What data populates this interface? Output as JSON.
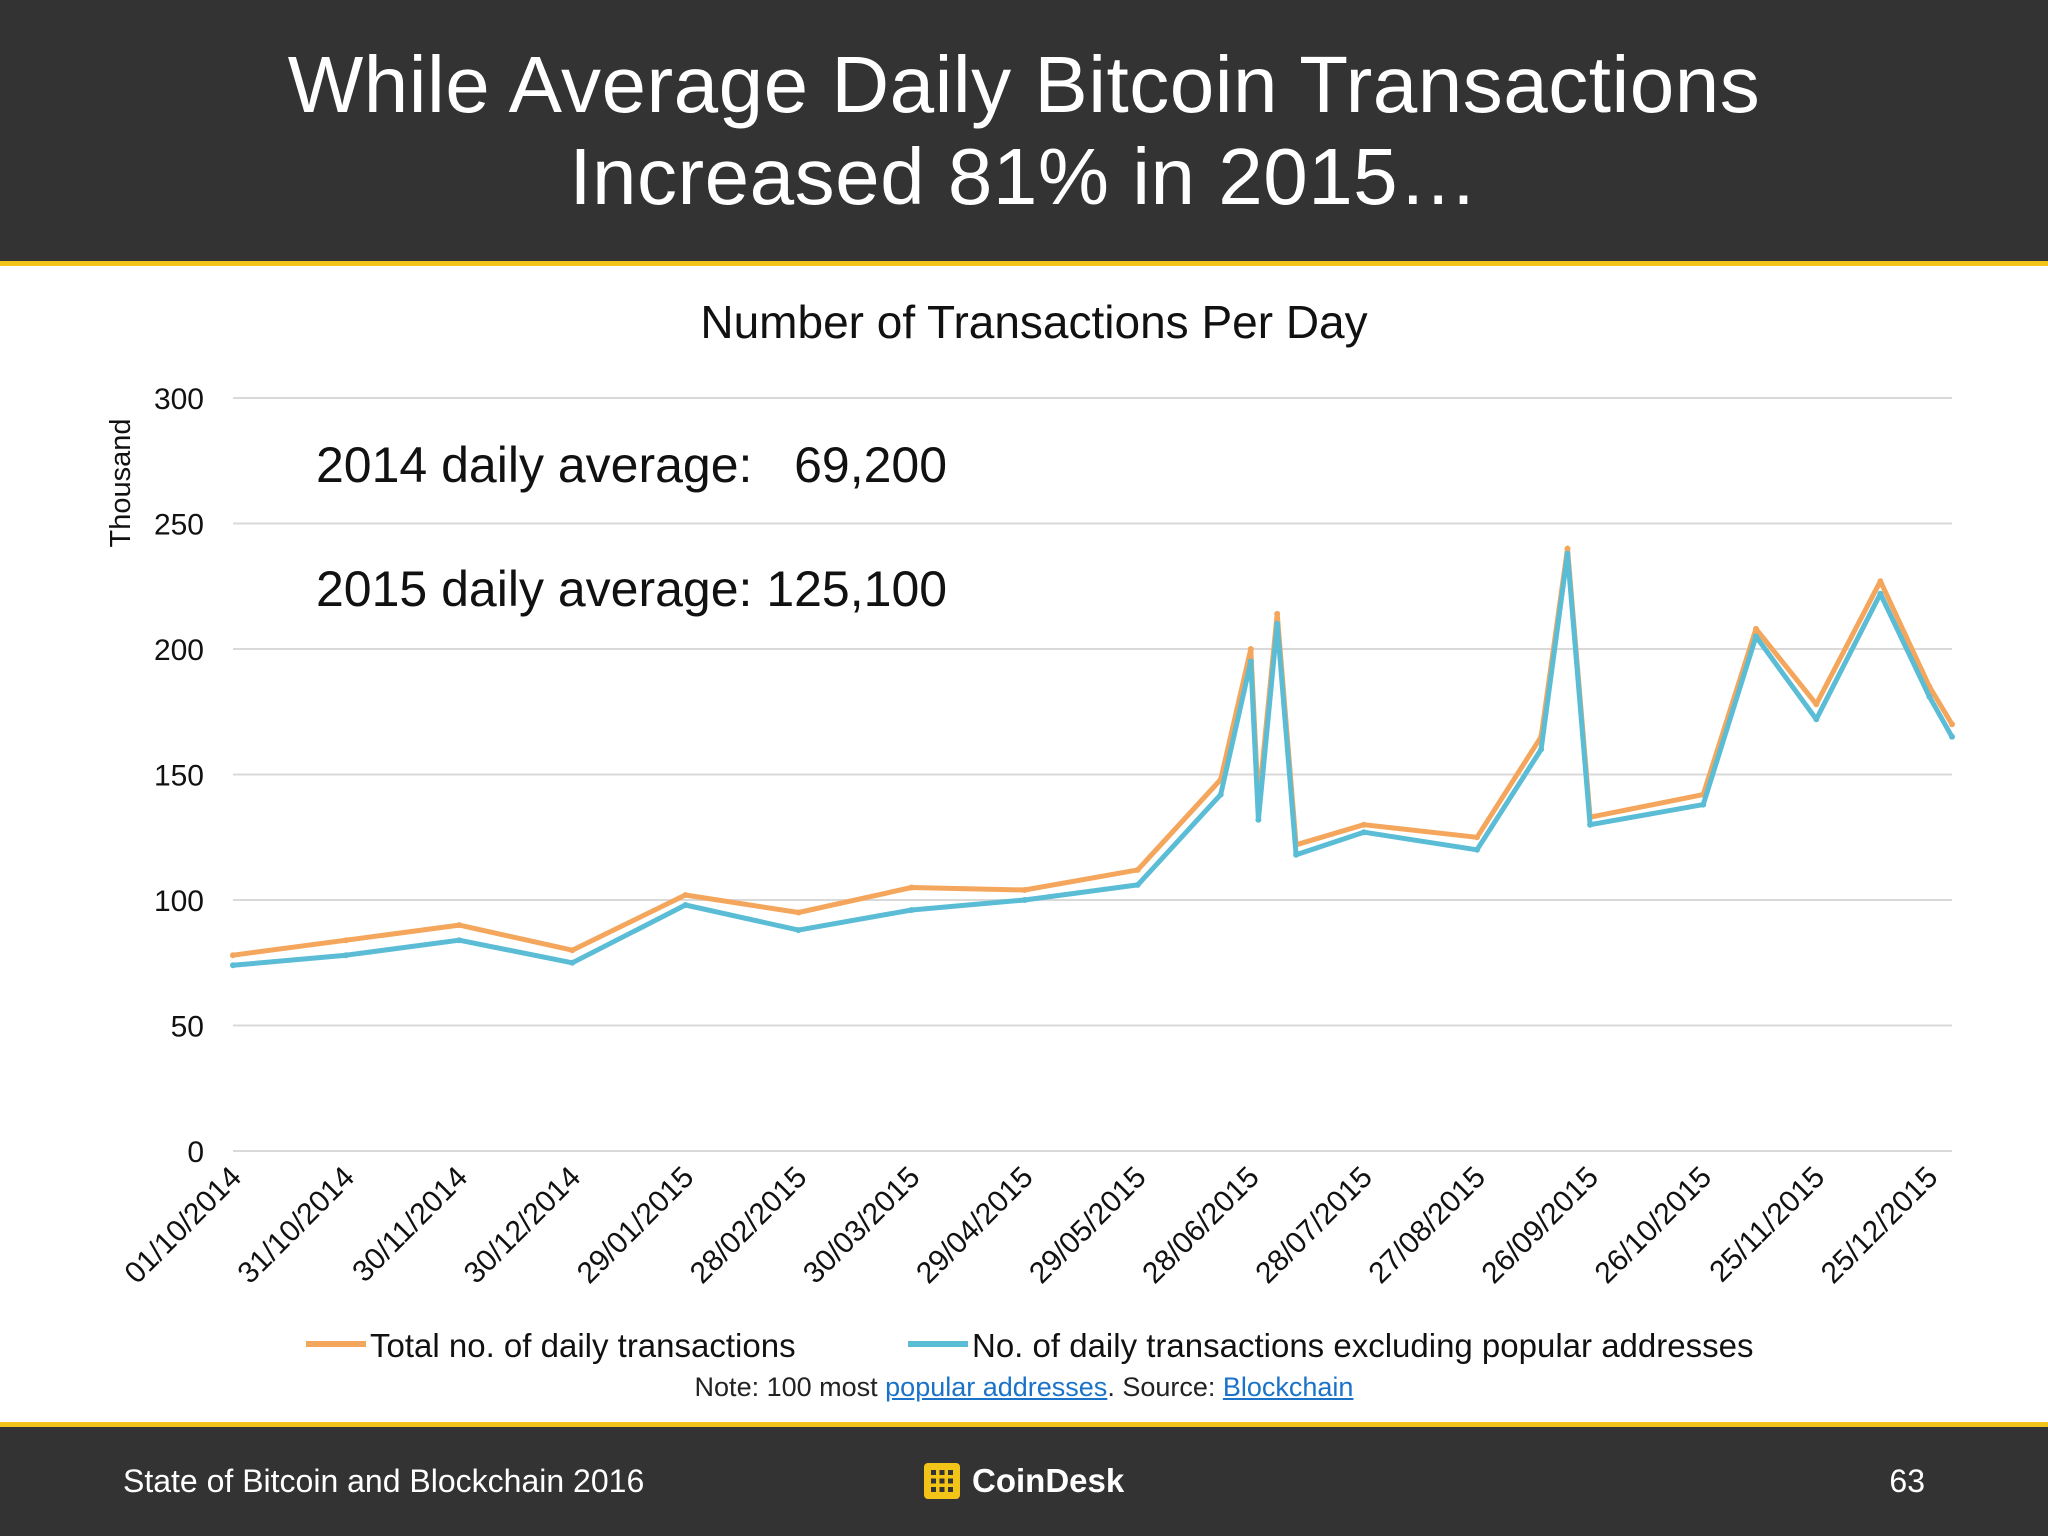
{
  "header": {
    "title_line1": "While Average Daily Bitcoin Transactions",
    "title_line2": "Increased 81% in 2015…"
  },
  "chart_data": {
    "type": "line",
    "title": "Number of Transactions Per Day",
    "ylabel": "Thousand",
    "ylim": [
      0,
      300
    ],
    "yticks": [
      "0",
      "50",
      "100",
      "150",
      "200",
      "250",
      "300"
    ],
    "x_tick_labels": [
      "01/10/2014",
      "31/10/2014",
      "30/11/2014",
      "30/12/2014",
      "29/01/2015",
      "28/02/2015",
      "30/03/2015",
      "29/04/2015",
      "29/05/2015",
      "28/06/2015",
      "28/07/2015",
      "27/08/2015",
      "26/09/2015",
      "26/10/2015",
      "25/11/2015",
      "25/12/2015"
    ],
    "grid": true,
    "legend_position": "bottom",
    "annotations": [
      "2014 daily average:   69,200",
      "2015 daily average: 125,100"
    ],
    "x": [
      "2014-10-01",
      "2014-10-31",
      "2014-11-30",
      "2014-12-30",
      "2015-01-29",
      "2015-02-28",
      "2015-03-30",
      "2015-04-29",
      "2015-05-29",
      "2015-06-20",
      "2015-06-28",
      "2015-06-30",
      "2015-07-05",
      "2015-07-10",
      "2015-07-28",
      "2015-08-27",
      "2015-09-13",
      "2015-09-20",
      "2015-09-26",
      "2015-10-26",
      "2015-11-09",
      "2015-11-25",
      "2015-12-12",
      "2015-12-25",
      "2015-12-31"
    ],
    "series": [
      {
        "name": "Total no. of daily transactions",
        "color": "#f4a65c",
        "values": [
          78,
          84,
          90,
          80,
          102,
          95,
          105,
          104,
          112,
          148,
          200,
          138,
          214,
          122,
          130,
          125,
          165,
          240,
          133,
          142,
          208,
          178,
          227,
          185,
          170
        ]
      },
      {
        "name": "No. of daily transactions excluding popular addresses",
        "color": "#5bbcd5",
        "values": [
          74,
          78,
          84,
          75,
          98,
          88,
          96,
          100,
          106,
          142,
          195,
          132,
          210,
          118,
          127,
          120,
          160,
          238,
          130,
          138,
          205,
          172,
          222,
          181,
          165
        ]
      }
    ]
  },
  "note": {
    "prefix": "Note: 100 most ",
    "link1": "popular addresses",
    "middle": ". Source: ",
    "link2": "Blockchain"
  },
  "footer": {
    "left": "State of Bitcoin and Blockchain 2016",
    "brand": "CoinDesk",
    "page": "63",
    "brand_color": "#f2c418"
  }
}
